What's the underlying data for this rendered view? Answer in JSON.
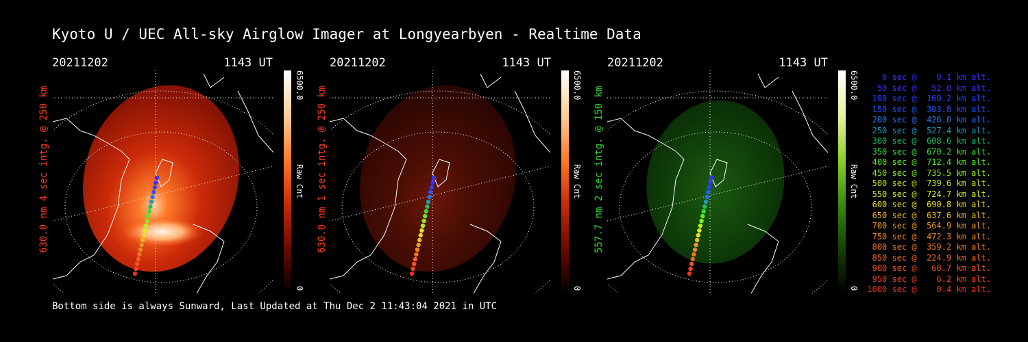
{
  "title": "Kyoto U / UEC All-sky Airglow Imager at Longyearbyen - Realtime Data",
  "footer": "Bottom side is always Sunward, Last Updated at Thu Dec  2 11:43:04 2021 in UTC",
  "panels": [
    {
      "date": "20211202",
      "time": "1143 UT",
      "side_label": "630.0 nm 4 sec intg. @ 250 km",
      "label_color": "#ff3b1f",
      "cbar_max": "6500.0",
      "cbar_unit": "Raw Cnt",
      "cbar_min": "0",
      "colormap": "red"
    },
    {
      "date": "20211202",
      "time": "1143 UT",
      "side_label": "630.0 nm 1 sec intg. @ 250 km",
      "label_color": "#ff3b1f",
      "cbar_max": "6500.0",
      "cbar_unit": "Raw Cnt",
      "cbar_min": "0",
      "colormap": "red"
    },
    {
      "date": "20211202",
      "time": "1143 UT",
      "side_label": "557.7 nm 2 sec intg. @ 150 km",
      "label_color": "#33d633",
      "cbar_max": "6500.0",
      "cbar_unit": "Raw Cnt",
      "cbar_min": "0",
      "colormap": "green"
    }
  ],
  "legend": [
    {
      "text": "   0 sec @    0.1 km alt.",
      "color": "#3333ff"
    },
    {
      "text": "  50 sec @   52.0 km alt.",
      "color": "#3333ff"
    },
    {
      "text": " 100 sec @  160.2 km alt.",
      "color": "#2244ff"
    },
    {
      "text": " 150 sec @  303.8 km alt.",
      "color": "#2255ff"
    },
    {
      "text": " 200 sec @  426.0 km alt.",
      "color": "#2277ee"
    },
    {
      "text": " 250 sec @  527.4 km alt.",
      "color": "#2299bb"
    },
    {
      "text": " 300 sec @  608.6 km alt.",
      "color": "#22bb66"
    },
    {
      "text": " 350 sec @  670.2 km alt.",
      "color": "#33dd33"
    },
    {
      "text": " 400 sec @  712.4 km alt.",
      "color": "#55ee22"
    },
    {
      "text": " 450 sec @  735.5 km alt.",
      "color": "#88ee22"
    },
    {
      "text": " 500 sec @  739.6 km alt.",
      "color": "#bbee22"
    },
    {
      "text": " 550 sec @  724.7 km alt.",
      "color": "#ddee22"
    },
    {
      "text": " 600 sec @  690.8 km alt.",
      "color": "#eedd22"
    },
    {
      "text": " 650 sec @  637.6 km alt.",
      "color": "#eebb22"
    },
    {
      "text": " 700 sec @  564.9 km alt.",
      "color": "#ee9922"
    },
    {
      "text": " 750 sec @  472.3 km alt.",
      "color": "#ee8822"
    },
    {
      "text": " 800 sec @  359.2 km alt.",
      "color": "#ee7722"
    },
    {
      "text": " 850 sec @  224.9 km alt.",
      "color": "#ee6622"
    },
    {
      "text": " 900 sec @   68.7 km alt.",
      "color": "#ee5522"
    },
    {
      "text": " 950 sec @    6.2 km alt.",
      "color": "#ee4422"
    },
    {
      "text": "1000 sec @    0.4 km alt.",
      "color": "#ee3322"
    }
  ]
}
